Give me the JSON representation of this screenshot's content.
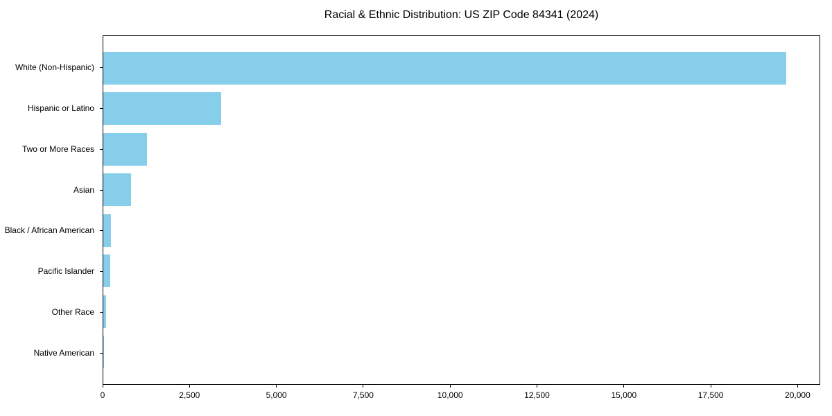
{
  "title": "Racial & Ethnic Distribution: US ZIP Code 84341 (2024)",
  "colors": {
    "bar": "#87CEEB",
    "spine": "#000000",
    "text": "#000000",
    "background": "#ffffff"
  },
  "chart_data": {
    "type": "bar",
    "orientation": "horizontal",
    "title": "Racial & Ethnic Distribution: US ZIP Code 84341 (2024)",
    "categories": [
      "White (Non-Hispanic)",
      "Hispanic or Latino",
      "Two or More Races",
      "Asian",
      "Black / African American",
      "Pacific Islander",
      "Other Race",
      "Native American"
    ],
    "values": [
      19700,
      3400,
      1250,
      800,
      220,
      190,
      70,
      10
    ],
    "xlabel": "",
    "ylabel": "",
    "xlim": [
      0,
      20650
    ],
    "x_ticks": [
      0,
      2500,
      5000,
      7500,
      10000,
      12500,
      15000,
      17500,
      20000
    ],
    "x_tick_labels": [
      "0",
      "2,500",
      "5,000",
      "7,500",
      "10,000",
      "12,500",
      "15,000",
      "17,500",
      "20,000"
    ],
    "grid": false,
    "legend": false,
    "bar_color": "#87CEEB"
  }
}
